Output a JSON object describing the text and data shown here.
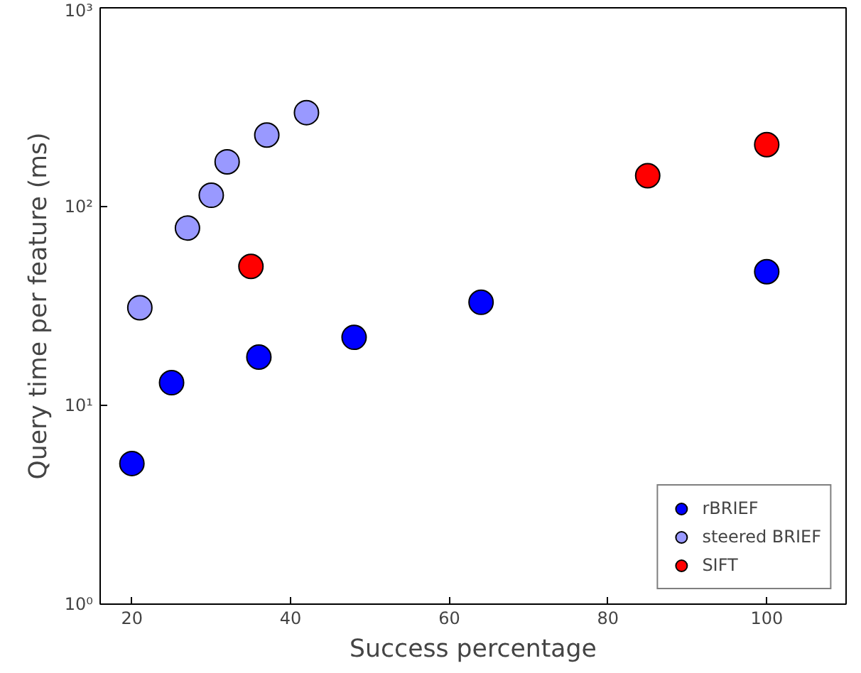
{
  "chart_data": {
    "type": "scatter",
    "xlabel": "Success percentage",
    "ylabel": "Query time per feature (ms)",
    "log": "y",
    "grid": false,
    "legend": "bottom right",
    "marker": "circle",
    "xlim": [
      16,
      110
    ],
    "xticks": [
      20,
      40,
      60,
      80,
      100
    ],
    "ylim": [
      1,
      1000
    ],
    "yticks": [
      {
        "value": 1,
        "label": "10⁰"
      },
      {
        "value": 10,
        "label": "10¹"
      },
      {
        "value": 100,
        "label": "10²"
      },
      {
        "value": 1000,
        "label": "10³"
      }
    ],
    "series": [
      {
        "name": "rBRIEF",
        "color": "#0000ff",
        "x": [
          20,
          25,
          36,
          48,
          64,
          100
        ],
        "values": [
          5.1,
          13,
          17.5,
          22,
          33,
          47
        ]
      },
      {
        "name": "steered BRIEF",
        "color": "#9999ff",
        "x": [
          21,
          27,
          30,
          32,
          37,
          42
        ],
        "values": [
          31,
          78,
          114,
          168,
          229,
          297
        ]
      },
      {
        "name": "SIFT",
        "color": "#ff0000",
        "x": [
          35,
          85,
          100
        ],
        "values": [
          50,
          143,
          205
        ]
      }
    ]
  }
}
